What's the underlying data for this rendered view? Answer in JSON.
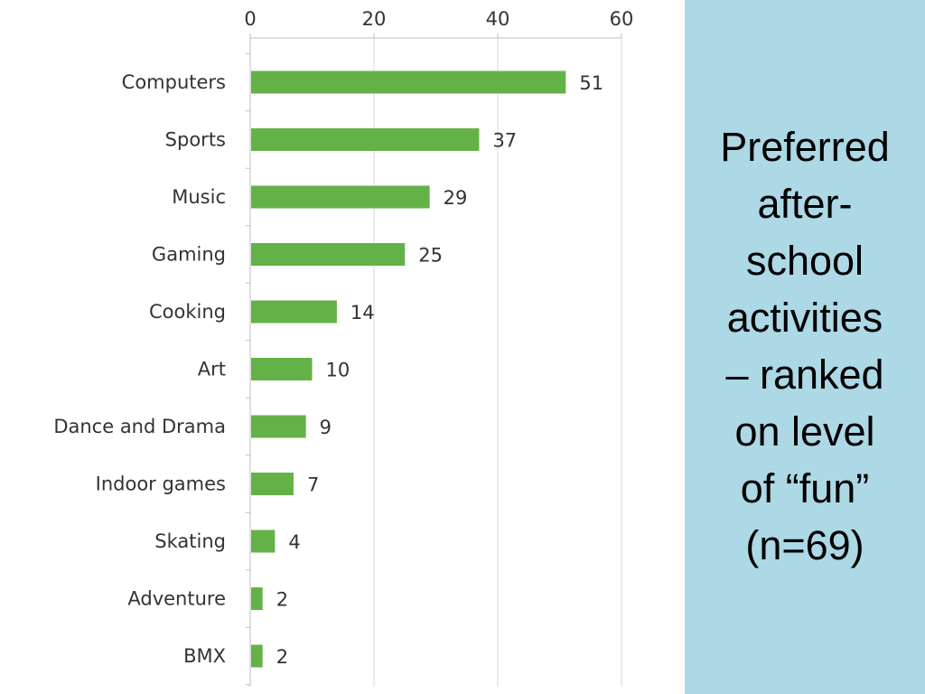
{
  "slide": {
    "title_lines": [
      "Preferred",
      "after-",
      "school",
      "activities",
      "– ranked",
      "on level",
      "of “fun”",
      "(n=69)"
    ],
    "panel_color": "#add8e6"
  },
  "chart_data": {
    "type": "bar",
    "orientation": "horizontal",
    "categories": [
      "Computers",
      "Sports",
      "Music",
      "Gaming",
      "Cooking",
      "Art",
      "Dance and Drama",
      "Indoor games",
      "Skating",
      "Adventure",
      "BMX"
    ],
    "values": [
      51,
      37,
      29,
      25,
      14,
      10,
      9,
      7,
      4,
      2,
      2
    ],
    "xlim": [
      0,
      60
    ],
    "x_ticks": [
      0,
      20,
      40,
      60
    ],
    "x_axis_position": "top",
    "data_labels": true,
    "grid": "vertical",
    "bar_color": "#64b247",
    "title": "",
    "xlabel": "",
    "ylabel": ""
  }
}
